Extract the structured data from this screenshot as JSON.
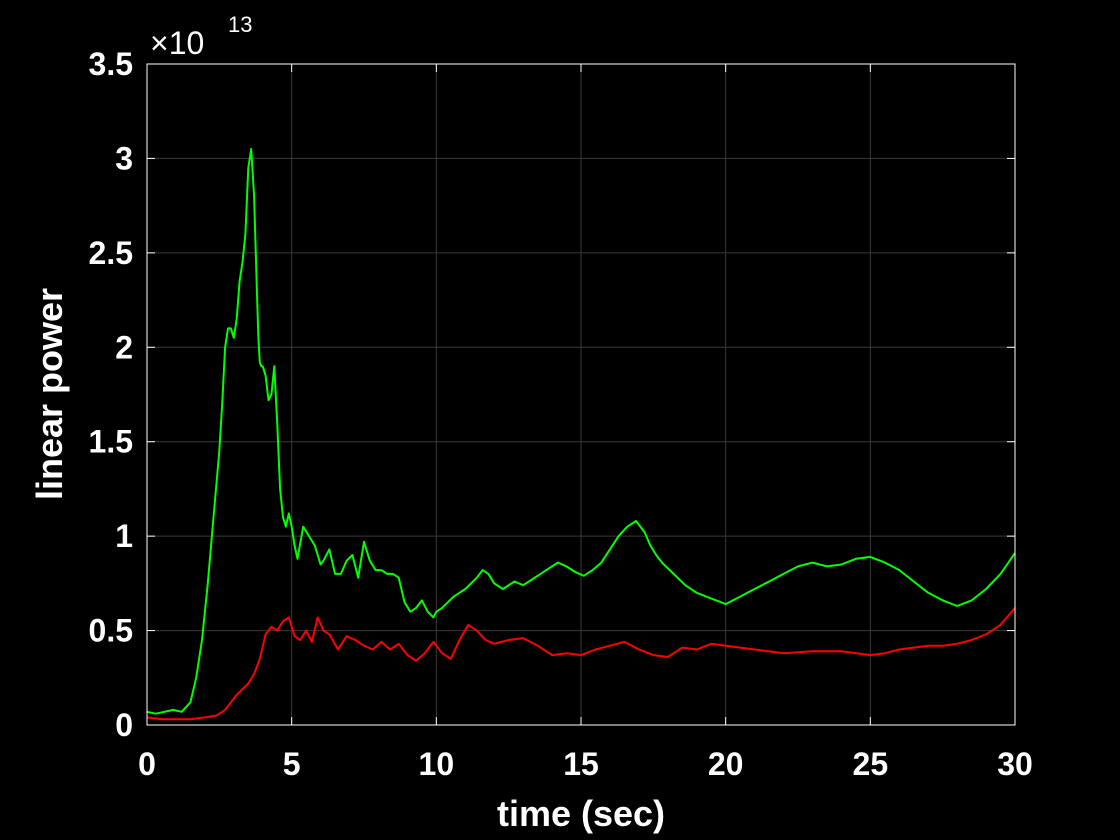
{
  "chart_data": {
    "type": "line",
    "xlabel": "time (sec)",
    "ylabel": "linear power",
    "y_multiplier_base": "×10",
    "y_multiplier_exp": "13",
    "xlim": [
      0,
      30
    ],
    "ylim": [
      0,
      3.5
    ],
    "x_ticks": [
      0,
      5,
      10,
      15,
      20,
      25,
      30
    ],
    "x_tick_labels": [
      "0",
      "5",
      "10",
      "15",
      "20",
      "25",
      "30"
    ],
    "y_ticks": [
      0,
      0.5,
      1,
      1.5,
      2,
      2.5,
      3,
      3.5
    ],
    "y_tick_labels": [
      "0",
      "0.5",
      "1",
      "1.5",
      "2",
      "2.5",
      "3",
      "3.5"
    ],
    "grid": true,
    "background": "#000000",
    "axes_color": "#ffffff",
    "series": [
      {
        "color": "#00ff00",
        "x": [
          0,
          0.3,
          0.6,
          0.9,
          1.2,
          1.5,
          1.7,
          1.9,
          2.1,
          2.3,
          2.5,
          2.6,
          2.7,
          2.8,
          2.9,
          3.0,
          3.1,
          3.2,
          3.3,
          3.4,
          3.5,
          3.6,
          3.7,
          3.8,
          3.85,
          3.9,
          3.95,
          4.0,
          4.1,
          4.2,
          4.3,
          4.4,
          4.5,
          4.6,
          4.7,
          4.8,
          4.9,
          5.0,
          5.1,
          5.2,
          5.4,
          5.6,
          5.8,
          5.9,
          6.0,
          6.1,
          6.3,
          6.5,
          6.7,
          6.9,
          7.1,
          7.3,
          7.5,
          7.7,
          7.9,
          8.1,
          8.3,
          8.5,
          8.7,
          8.9,
          9.1,
          9.3,
          9.5,
          9.7,
          9.9,
          10.0,
          10.2,
          10.4,
          10.6,
          10.8,
          11.0,
          11.2,
          11.4,
          11.6,
          11.8,
          12.0,
          12.3,
          12.5,
          12.7,
          13.0,
          13.3,
          13.6,
          13.9,
          14.2,
          14.5,
          14.8,
          15.1,
          15.4,
          15.7,
          16.0,
          16.3,
          16.6,
          16.9,
          17.2,
          17.4,
          17.6,
          17.8,
          18.2,
          18.6,
          19.0,
          19.5,
          20.0,
          20.5,
          21.0,
          21.5,
          22.0,
          22.5,
          23.0,
          23.5,
          24.0,
          24.5,
          25.0,
          25.5,
          26.0,
          26.5,
          27.0,
          27.5,
          28.0,
          28.5,
          29.0,
          29.5,
          30.0
        ],
        "y": [
          0.07,
          0.06,
          0.07,
          0.08,
          0.07,
          0.12,
          0.25,
          0.45,
          0.75,
          1.1,
          1.45,
          1.7,
          2.0,
          2.1,
          2.1,
          2.05,
          2.15,
          2.35,
          2.45,
          2.6,
          2.95,
          3.05,
          2.8,
          2.3,
          2.05,
          1.92,
          1.9,
          1.9,
          1.85,
          1.72,
          1.75,
          1.9,
          1.6,
          1.25,
          1.1,
          1.05,
          1.12,
          1.05,
          0.95,
          0.88,
          1.05,
          1.0,
          0.95,
          0.9,
          0.85,
          0.87,
          0.93,
          0.8,
          0.8,
          0.87,
          0.9,
          0.78,
          0.97,
          0.87,
          0.82,
          0.82,
          0.8,
          0.8,
          0.78,
          0.65,
          0.6,
          0.62,
          0.66,
          0.6,
          0.57,
          0.6,
          0.62,
          0.65,
          0.68,
          0.7,
          0.72,
          0.75,
          0.78,
          0.82,
          0.8,
          0.75,
          0.72,
          0.74,
          0.76,
          0.74,
          0.77,
          0.8,
          0.83,
          0.86,
          0.84,
          0.81,
          0.79,
          0.82,
          0.86,
          0.93,
          1.0,
          1.05,
          1.08,
          1.02,
          0.95,
          0.9,
          0.86,
          0.8,
          0.74,
          0.7,
          0.67,
          0.64,
          0.68,
          0.72,
          0.76,
          0.8,
          0.84,
          0.86,
          0.84,
          0.85,
          0.88,
          0.89,
          0.86,
          0.82,
          0.76,
          0.7,
          0.66,
          0.63,
          0.66,
          0.72,
          0.8,
          0.91
        ]
      },
      {
        "color": "#ff0000",
        "x": [
          0,
          0.5,
          1.0,
          1.5,
          2.0,
          2.4,
          2.7,
          2.9,
          3.1,
          3.3,
          3.5,
          3.7,
          3.9,
          4.1,
          4.3,
          4.5,
          4.7,
          4.9,
          5.1,
          5.3,
          5.5,
          5.7,
          5.9,
          6.1,
          6.3,
          6.6,
          6.9,
          7.2,
          7.5,
          7.8,
          8.1,
          8.4,
          8.7,
          9.0,
          9.3,
          9.6,
          9.9,
          10.2,
          10.5,
          10.8,
          11.1,
          11.4,
          11.7,
          12.0,
          12.5,
          13.0,
          13.5,
          14.0,
          14.5,
          15.0,
          15.5,
          16.0,
          16.5,
          17.0,
          17.5,
          18.0,
          18.5,
          19.0,
          19.5,
          20.0,
          21.0,
          22.0,
          23.0,
          24.0,
          25.0,
          25.5,
          26.0,
          26.5,
          27.0,
          27.5,
          28.0,
          28.5,
          29.0,
          29.5,
          30.0
        ],
        "y": [
          0.04,
          0.03,
          0.03,
          0.03,
          0.04,
          0.05,
          0.08,
          0.12,
          0.16,
          0.19,
          0.22,
          0.27,
          0.35,
          0.48,
          0.52,
          0.5,
          0.55,
          0.57,
          0.47,
          0.45,
          0.5,
          0.44,
          0.57,
          0.5,
          0.48,
          0.4,
          0.47,
          0.45,
          0.42,
          0.4,
          0.44,
          0.4,
          0.43,
          0.37,
          0.34,
          0.38,
          0.44,
          0.38,
          0.35,
          0.45,
          0.53,
          0.5,
          0.45,
          0.43,
          0.45,
          0.46,
          0.42,
          0.37,
          0.38,
          0.37,
          0.4,
          0.42,
          0.44,
          0.4,
          0.37,
          0.36,
          0.41,
          0.4,
          0.43,
          0.42,
          0.4,
          0.38,
          0.39,
          0.39,
          0.37,
          0.38,
          0.4,
          0.41,
          0.42,
          0.42,
          0.43,
          0.45,
          0.48,
          0.53,
          0.62
        ]
      }
    ]
  }
}
